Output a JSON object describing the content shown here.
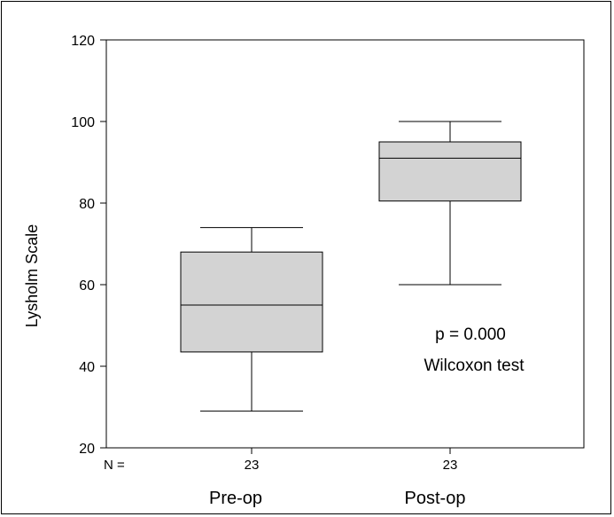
{
  "chart_data": {
    "type": "box",
    "ylabel": "Lysholm Scale",
    "ylim": [
      20,
      120
    ],
    "yticks": [
      20,
      40,
      60,
      80,
      100,
      120
    ],
    "n_label": "N =",
    "categories": [
      "Pre-op",
      "Post-op"
    ],
    "n": [
      "23",
      "23"
    ],
    "boxes": [
      {
        "min": 29,
        "q1": 43.5,
        "median": 55,
        "q3": 68,
        "max": 74
      },
      {
        "min": 60,
        "q1": 80.5,
        "median": 91,
        "q3": 95,
        "max": 100
      }
    ],
    "annotations": [
      "p = 0.000",
      "Wilcoxon test"
    ],
    "box_fill": "#d3d3d3",
    "line_color": "#000000"
  }
}
